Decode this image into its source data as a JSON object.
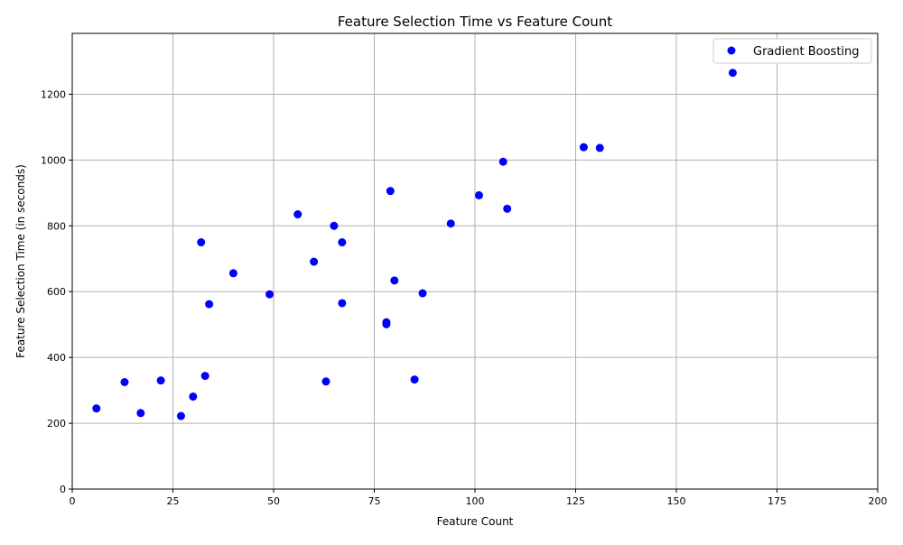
{
  "chart_data": {
    "type": "scatter",
    "title": "Feature Selection Time vs Feature Count",
    "xlabel": "Feature Count",
    "ylabel": "Feature Selection Time (in seconds)",
    "xlim": [
      0,
      200
    ],
    "ylim": [
      0,
      1385
    ],
    "xticks": [
      "0",
      "25",
      "50",
      "75",
      "100",
      "125",
      "150",
      "175",
      "200"
    ],
    "yticks": [
      "0",
      "200",
      "400",
      "600",
      "800",
      "1000",
      "1200"
    ],
    "grid": true,
    "legend_position": "top-right",
    "series": [
      {
        "name": "Gradient Boosting",
        "color": "#0000ff",
        "points": [
          {
            "x": 6,
            "y": 245
          },
          {
            "x": 13,
            "y": 325
          },
          {
            "x": 17,
            "y": 231
          },
          {
            "x": 22,
            "y": 330
          },
          {
            "x": 27,
            "y": 222
          },
          {
            "x": 30,
            "y": 281
          },
          {
            "x": 32,
            "y": 750
          },
          {
            "x": 33,
            "y": 344
          },
          {
            "x": 34,
            "y": 562
          },
          {
            "x": 40,
            "y": 656
          },
          {
            "x": 49,
            "y": 592
          },
          {
            "x": 56,
            "y": 835
          },
          {
            "x": 60,
            "y": 691
          },
          {
            "x": 63,
            "y": 327
          },
          {
            "x": 65,
            "y": 800
          },
          {
            "x": 67,
            "y": 750
          },
          {
            "x": 67,
            "y": 565
          },
          {
            "x": 78,
            "y": 507
          },
          {
            "x": 78,
            "y": 501
          },
          {
            "x": 79,
            "y": 906
          },
          {
            "x": 80,
            "y": 634
          },
          {
            "x": 85,
            "y": 333
          },
          {
            "x": 87,
            "y": 595
          },
          {
            "x": 94,
            "y": 807
          },
          {
            "x": 101,
            "y": 893
          },
          {
            "x": 107,
            "y": 995
          },
          {
            "x": 108,
            "y": 852
          },
          {
            "x": 127,
            "y": 1039
          },
          {
            "x": 131,
            "y": 1037
          },
          {
            "x": 164,
            "y": 1265
          }
        ]
      }
    ]
  }
}
